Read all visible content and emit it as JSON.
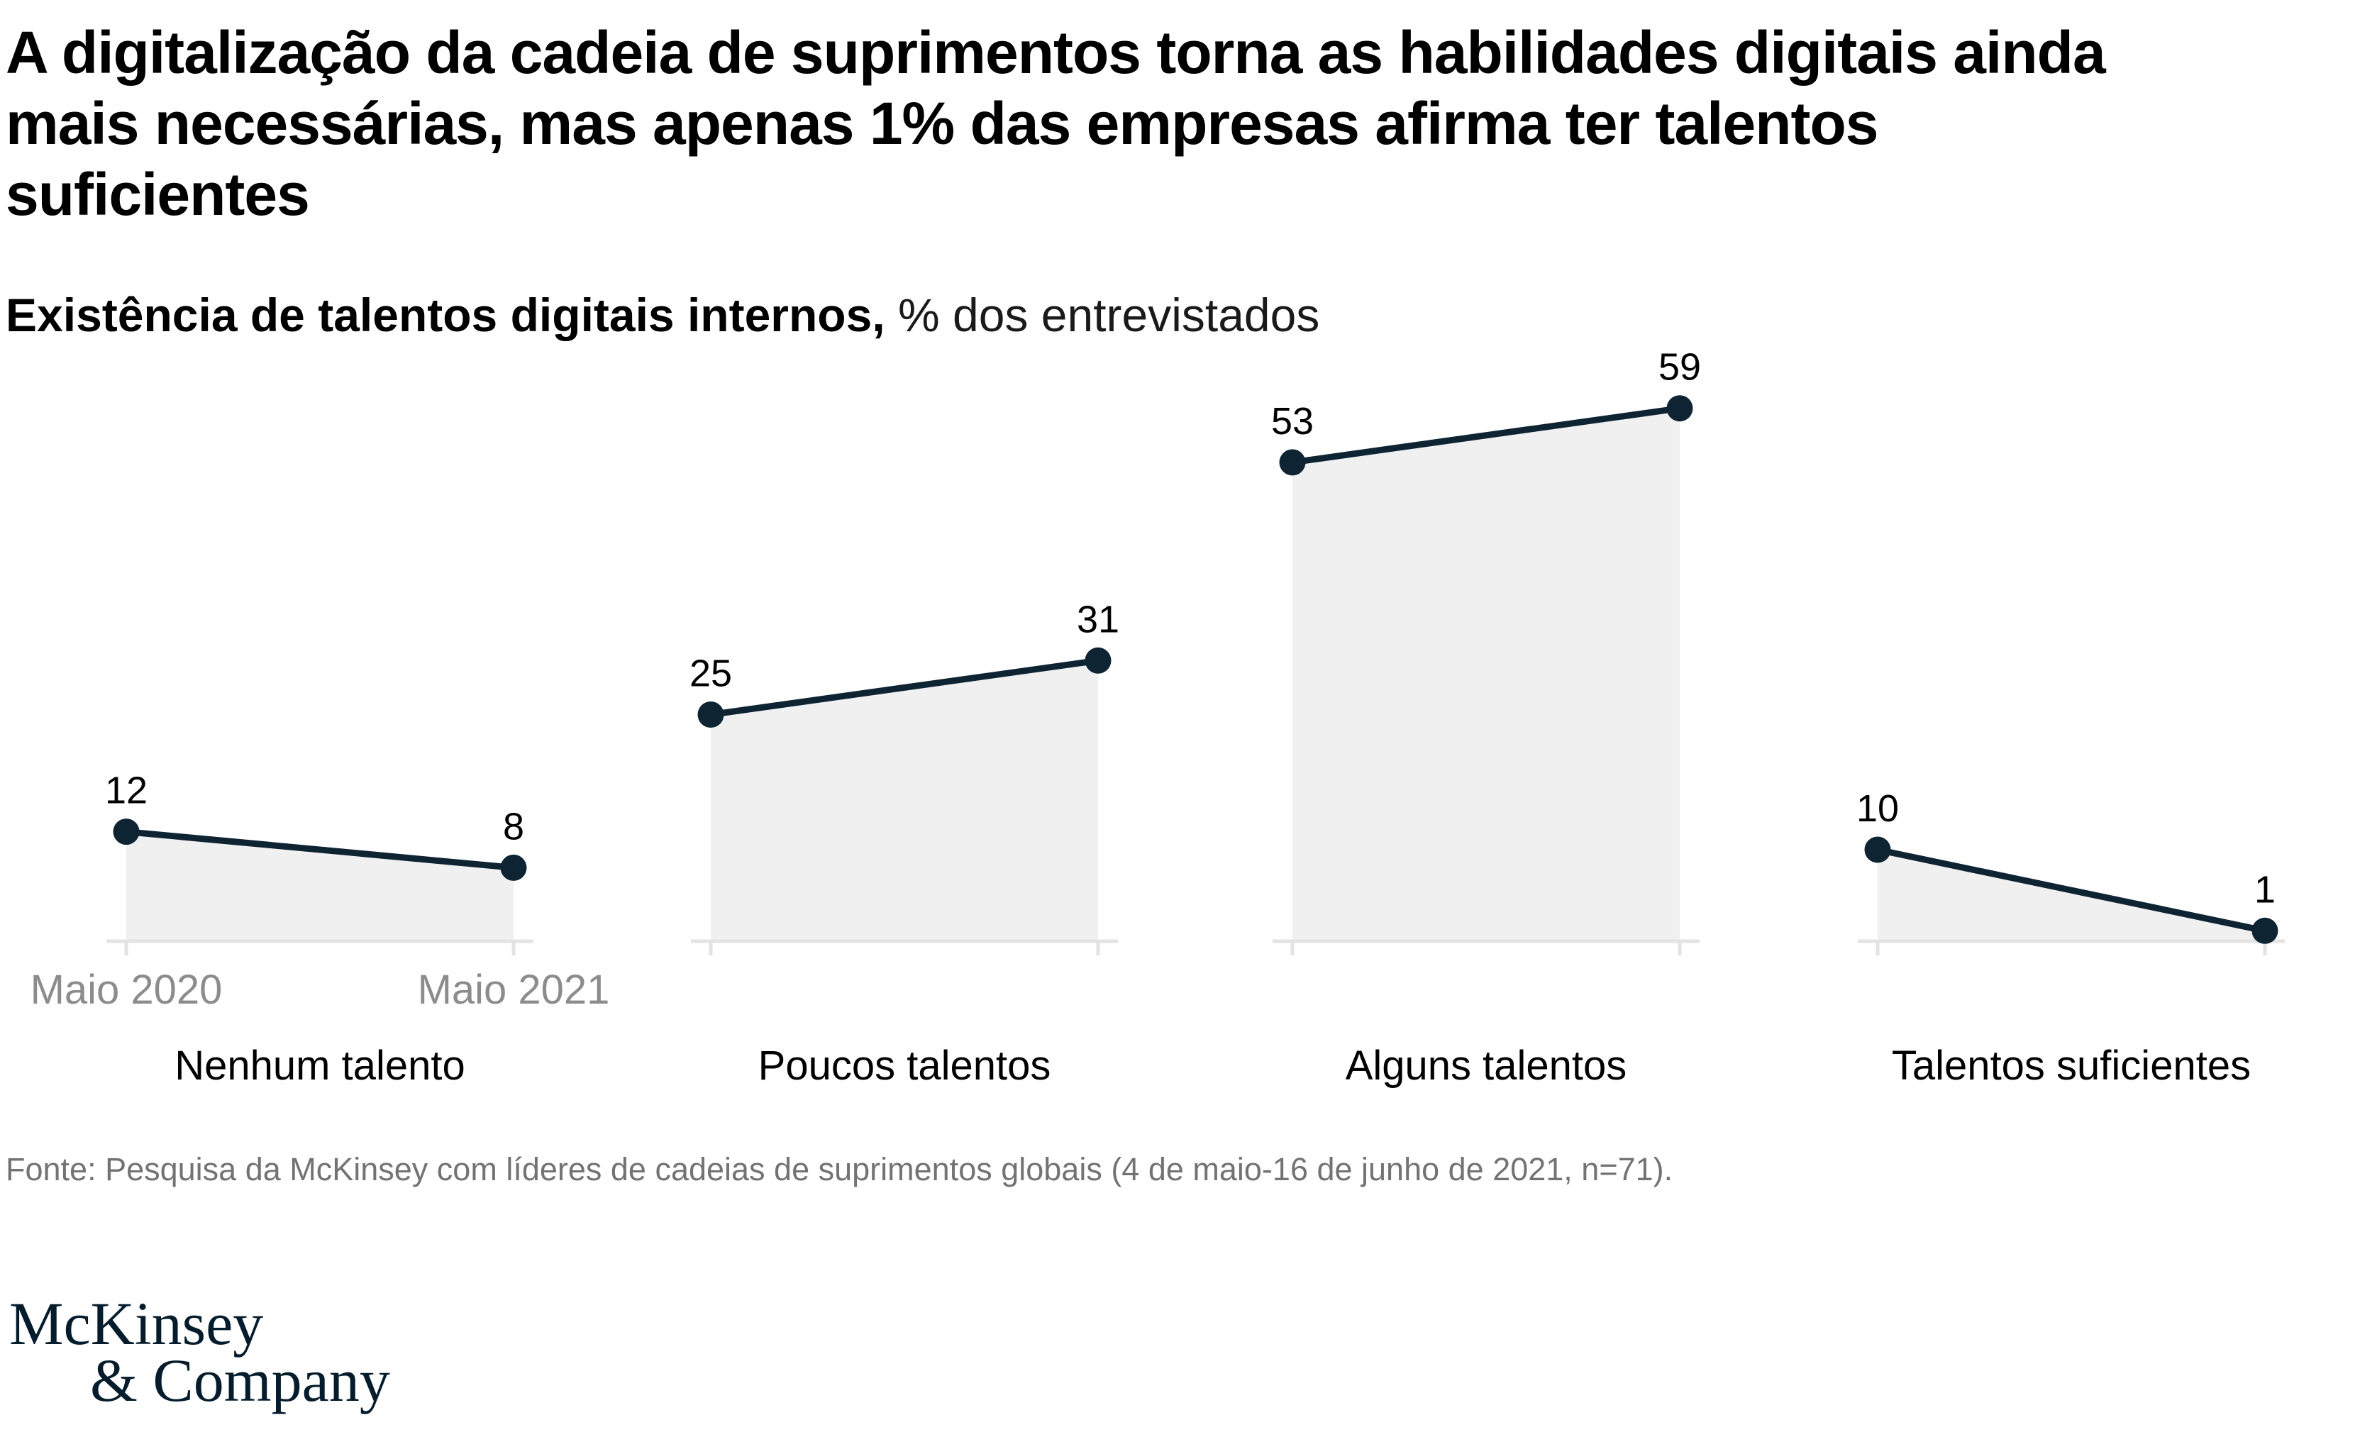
{
  "header": {
    "title_lines": [
      "A digitalização da cadeia de suprimentos torna as habilidades digitais ainda",
      "mais necessárias, mas apenas 1% das empresas afirma ter talentos",
      "suficientes"
    ],
    "subtitle_bold": "Existência de talentos digitais internos,",
    "subtitle_regular": " % dos entrevistados"
  },
  "chart_data": {
    "type": "area",
    "title": "Existência de talentos digitais internos",
    "ylabel": "% dos entrevistados",
    "ylim": [
      0,
      60
    ],
    "grid": "off",
    "legend": "none",
    "x_tick_labels": [
      "Maio 2020",
      "Maio 2021"
    ],
    "x_labels_shown_for_group": 0,
    "groups": [
      {
        "label": "Nenhum talento",
        "values": [
          12,
          8
        ]
      },
      {
        "label": "Poucos talentos",
        "values": [
          25,
          31
        ]
      },
      {
        "label": "Alguns talentos",
        "values": [
          53,
          59
        ]
      },
      {
        "label": "Talentos suficientes",
        "values": [
          10,
          1
        ]
      }
    ],
    "colors": {
      "line": "#0e2433",
      "dot": "#0e2433",
      "area_fill": "#f0f0f0",
      "axis_line": "#e3e3e3",
      "x_tick_label": "#8c8c8c",
      "value_label": "#000000",
      "category_label": "#000000"
    }
  },
  "source_note": "Fonte: Pesquisa da McKinsey com líderes de cadeias de suprimentos globais (4 de maio-16 de junho de 2021, n=71).",
  "logo": {
    "line1": "McKinsey",
    "line2": "& Company",
    "color": "#051c2c"
  }
}
